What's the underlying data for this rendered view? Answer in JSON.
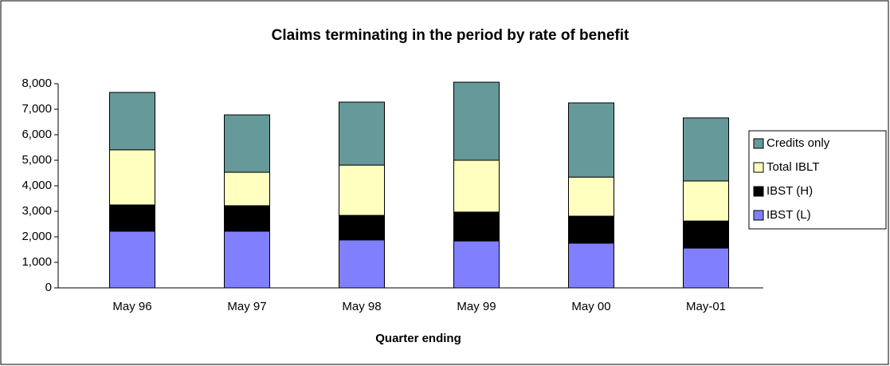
{
  "chart_data": {
    "type": "stacked_bar",
    "title": "Claims terminating in the period by rate of benefit",
    "x_label": "Quarter ending",
    "categories": [
      "May 96",
      "May 97",
      "May 98",
      "May 99",
      "May 00",
      "May-01"
    ],
    "series": [
      {
        "name": "IBST (L)",
        "color": "#8080ff",
        "values": [
          2220,
          2220,
          1880,
          1840,
          1750,
          1560
        ]
      },
      {
        "name": "IBST (H)",
        "color": "#000000",
        "values": [
          1030,
          1000,
          960,
          1130,
          1060,
          1060
        ]
      },
      {
        "name": "Total IBLT",
        "color": "#ffffc0",
        "values": [
          2160,
          1310,
          1970,
          2030,
          1530,
          1570
        ]
      },
      {
        "name": "Credits only",
        "color": "#669999",
        "values": [
          2250,
          2250,
          2470,
          3060,
          2910,
          2470
        ]
      }
    ],
    "ylim": [
      0,
      8000
    ],
    "yticks": [
      0,
      {
        "value": 1000,
        "label": "1,000"
      },
      {
        "value": 2000,
        "label": "2,000"
      },
      {
        "value": 3000,
        "label": "3,000"
      },
      {
        "value": 4000,
        "label": "4,000"
      },
      {
        "value": 5000,
        "label": "5,000"
      },
      {
        "value": 6000,
        "label": "6,000"
      },
      {
        "value": 7000,
        "label": "7,000"
      },
      {
        "value": 8000,
        "label": "8,000"
      }
    ],
    "legend": "right"
  }
}
